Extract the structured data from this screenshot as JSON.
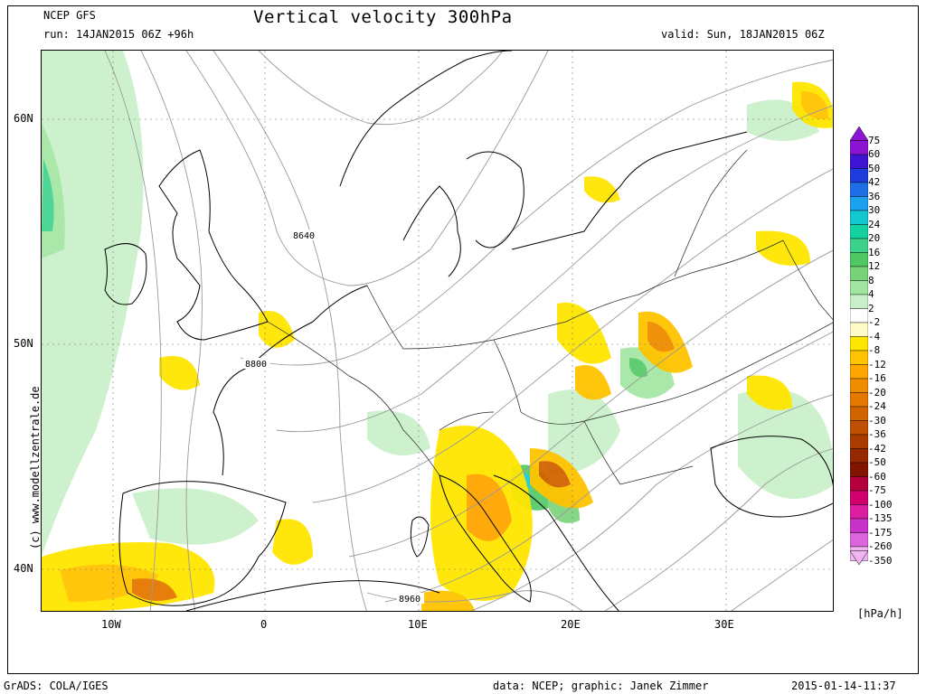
{
  "header": {
    "model": "NCEP GFS",
    "run": "run: 14JAN2015 06Z +96h",
    "title": "Vertical velocity 300hPa",
    "valid": "valid: Sun, 18JAN2015 06Z"
  },
  "footer": {
    "software": "GrADS: COLA/IGES",
    "credits": "data: NCEP; graphic: Janek Zimmer",
    "timestamp": "2015-01-14-11:37"
  },
  "copyright": "(c)  www.modellzentrale.de",
  "axes": {
    "lat_labels": [
      "60N",
      "50N",
      "40N"
    ],
    "lon_labels": [
      "10W",
      "0",
      "10E",
      "20E",
      "30E"
    ]
  },
  "contour_labels": [
    "8640",
    "8800",
    "8960"
  ],
  "legend": {
    "units": "[hPa/h]",
    "levels": [
      "75",
      "60",
      "50",
      "42",
      "36",
      "30",
      "24",
      "20",
      "16",
      "12",
      "8",
      "4",
      "2",
      "-2",
      "-4",
      "-8",
      "-12",
      "-16",
      "-20",
      "-24",
      "-30",
      "-36",
      "-42",
      "-50",
      "-60",
      "-75",
      "-100",
      "-135",
      "-175",
      "-260",
      "-350"
    ],
    "colors": [
      "#8c14d2",
      "#3c14d2",
      "#1e3cdc",
      "#1e6ee6",
      "#1ea0f0",
      "#14c8d2",
      "#14d2a0",
      "#3cd28c",
      "#50c864",
      "#78d278",
      "#a0e6a0",
      "#c8f0c8",
      "#ffffff",
      "#fffac8",
      "#ffe600",
      "#ffc300",
      "#ffa500",
      "#f08c00",
      "#e67800",
      "#d26400",
      "#be5000",
      "#aa3c00",
      "#962800",
      "#821400",
      "#b4003c",
      "#d2006e",
      "#dc1ea0",
      "#c832c8",
      "#dc64dc",
      "#f0b4f0"
    ]
  }
}
